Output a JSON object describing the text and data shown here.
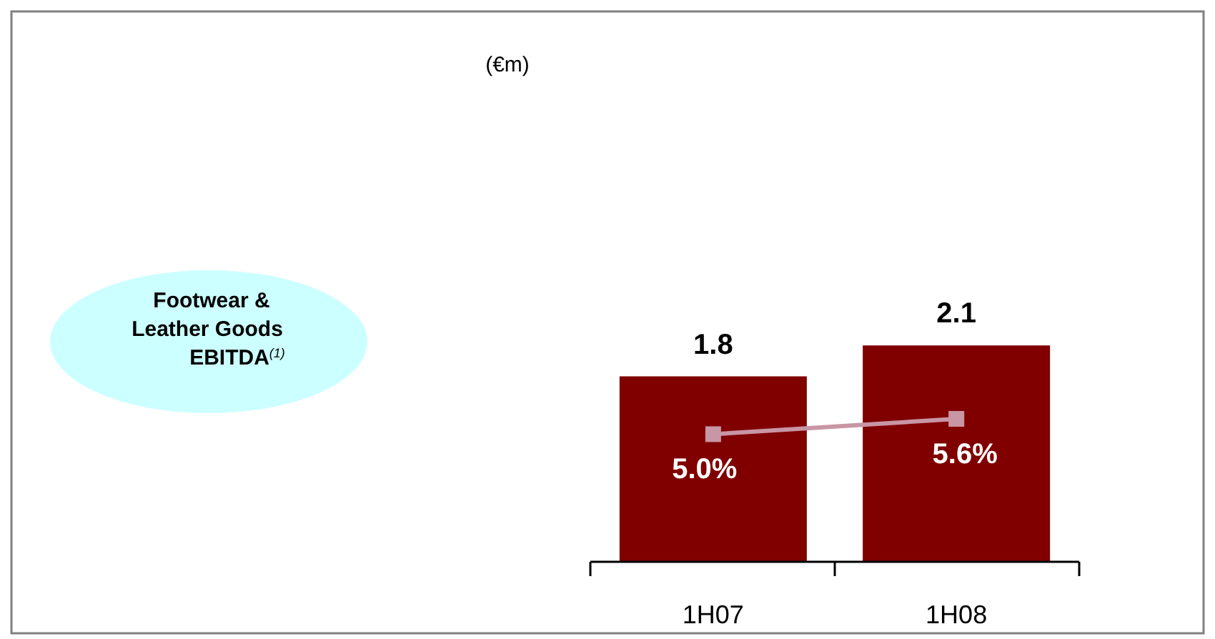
{
  "chart_data": {
    "type": "bar",
    "title": "Footwear & Leather Goods EBITDA$^{(1)}$",
    "annotations": [
      "(€m)"
    ],
    "categories": [
      "1H07",
      "1H08"
    ],
    "series": [
      {
        "color": "#800000",
        "values": [
          1.8,
          2.1
        ],
        "value_labels": [
          "1.8",
          "2.1"
        ]
      },
      {
        "type": "line",
        "axis": "y2",
        "color": "#c896a5",
        "marker": "square",
        "values": [
          5.0,
          5.6
        ],
        "value_labels": [
          "5.0%",
          "5.6%"
        ]
      }
    ],
    "tick_labels": "x",
    "grid": false
  }
}
